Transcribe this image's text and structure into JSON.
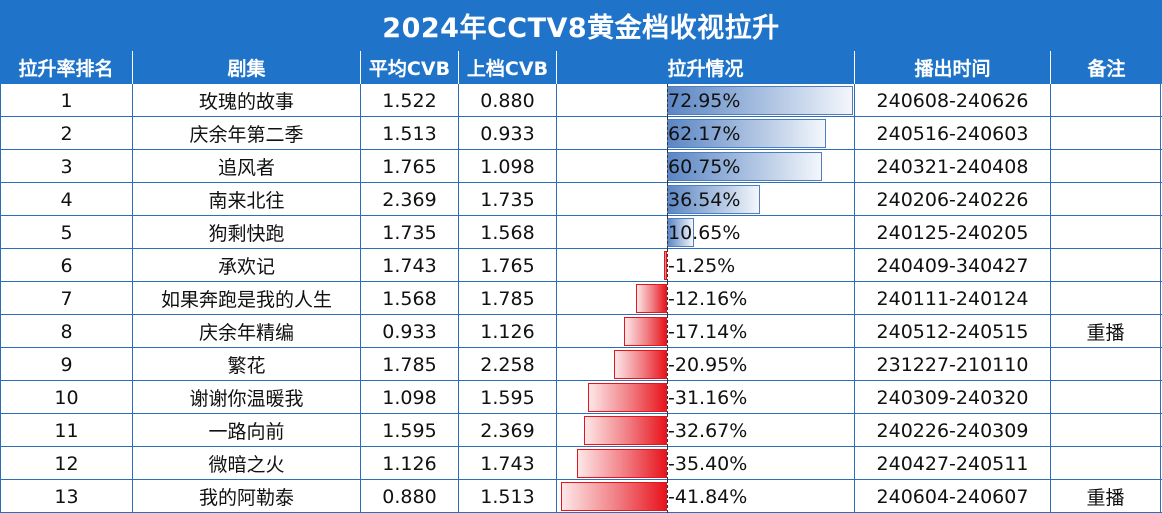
{
  "title": "2024年CCTV8黄金档收视拉升",
  "headers": [
    "拉升率排名",
    "剧集",
    "平均CVB",
    "上档CVB",
    "拉升情况",
    "播出时间",
    "备注"
  ],
  "colors": {
    "header_bg": "#1f74c9",
    "grid": "#2b6fb8",
    "bar_positive": "#5b86c4",
    "bar_negative": "#e8141c"
  },
  "rows": [
    {
      "rank": "1",
      "name": "玫瑰的故事",
      "avg": "1.522",
      "prev": "0.880",
      "pct": "72.95%",
      "value": 72.95,
      "dates": "240608-240626",
      "note": ""
    },
    {
      "rank": "2",
      "name": "庆余年第二季",
      "avg": "1.513",
      "prev": "0.933",
      "pct": "62.17%",
      "value": 62.17,
      "dates": "240516-240603",
      "note": ""
    },
    {
      "rank": "3",
      "name": "追风者",
      "avg": "1.765",
      "prev": "1.098",
      "pct": "60.75%",
      "value": 60.75,
      "dates": "240321-240408",
      "note": ""
    },
    {
      "rank": "4",
      "name": "南来北往",
      "avg": "2.369",
      "prev": "1.735",
      "pct": "36.54%",
      "value": 36.54,
      "dates": "240206-240226",
      "note": ""
    },
    {
      "rank": "5",
      "name": "狗剩快跑",
      "avg": "1.735",
      "prev": "1.568",
      "pct": "10.65%",
      "value": 10.65,
      "dates": "240125-240205",
      "note": ""
    },
    {
      "rank": "6",
      "name": "承欢记",
      "avg": "1.743",
      "prev": "1.765",
      "pct": "-1.25%",
      "value": -1.25,
      "dates": "240409-340427",
      "note": ""
    },
    {
      "rank": "7",
      "name": "如果奔跑是我的人生",
      "avg": "1.568",
      "prev": "1.785",
      "pct": "-12.16%",
      "value": -12.16,
      "dates": "240111-240124",
      "note": ""
    },
    {
      "rank": "8",
      "name": "庆余年精编",
      "avg": "0.933",
      "prev": "1.126",
      "pct": "-17.14%",
      "value": -17.14,
      "dates": "240512-240515",
      "note": "重播"
    },
    {
      "rank": "9",
      "name": "繁花",
      "avg": "1.785",
      "prev": "2.258",
      "pct": "-20.95%",
      "value": -20.95,
      "dates": "231227-210110",
      "note": ""
    },
    {
      "rank": "10",
      "name": "谢谢你温暖我",
      "avg": "1.098",
      "prev": "1.595",
      "pct": "-31.16%",
      "value": -31.16,
      "dates": "240309-240320",
      "note": ""
    },
    {
      "rank": "11",
      "name": "一路向前",
      "avg": "1.595",
      "prev": "2.369",
      "pct": "-32.67%",
      "value": -32.67,
      "dates": "240226-240309",
      "note": ""
    },
    {
      "rank": "12",
      "name": "微暗之火",
      "avg": "1.126",
      "prev": "1.743",
      "pct": "-35.40%",
      "value": -35.4,
      "dates": "240427-240511",
      "note": ""
    },
    {
      "rank": "13",
      "name": "我的阿勒泰",
      "avg": "0.880",
      "prev": "1.513",
      "pct": "-41.84%",
      "value": -41.84,
      "dates": "240604-240607",
      "note": "重播"
    }
  ]
}
